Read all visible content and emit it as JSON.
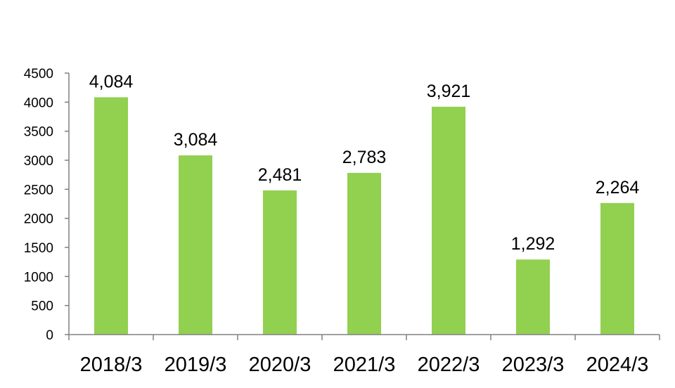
{
  "chart_data": {
    "type": "bar",
    "categories": [
      "2018/3",
      "2019/3",
      "2020/3",
      "2021/3",
      "2022/3",
      "2023/3",
      "2024/3"
    ],
    "values": [
      4084,
      3084,
      2481,
      2783,
      3921,
      1292,
      2264
    ],
    "data_labels": [
      "4,084",
      "3,084",
      "2,481",
      "2,783",
      "3,921",
      "1,292",
      "2,264"
    ],
    "yticks": [
      0,
      500,
      1000,
      1500,
      2000,
      2500,
      3000,
      3500,
      4000,
      4500
    ],
    "ylim": [
      0,
      4500
    ],
    "grid": false,
    "legend": "none",
    "bar_color": "#92d050",
    "axis_color": "#808080"
  }
}
